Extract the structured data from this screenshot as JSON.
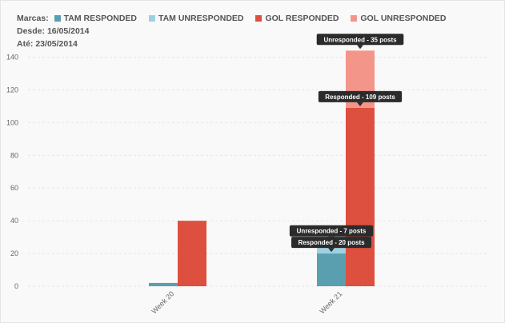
{
  "legend": {
    "prefix": "Marcas:",
    "items": [
      {
        "label": "TAM RESPONDED",
        "color": "#5a9fb0"
      },
      {
        "label": "TAM UNRESPONDED",
        "color": "#9ed0e0"
      },
      {
        "label": "GOL RESPONDED",
        "color": "#dd4f3e"
      },
      {
        "label": "GOL UNRESPONDED",
        "color": "#f4958a"
      }
    ],
    "from_label": "Desde:",
    "from_date": "16/05/2014",
    "to_label": "Até:",
    "to_date": "23/05/2014"
  },
  "chart_data": {
    "type": "bar",
    "stacked": true,
    "categories": [
      "Week 20",
      "Week 21"
    ],
    "stacks": [
      {
        "name": "TAM",
        "series": [
          {
            "name": "TAM RESPONDED",
            "color": "#5a9fb0",
            "values": [
              2,
              20
            ]
          },
          {
            "name": "TAM UNRESPONDED",
            "color": "#9ed0e0",
            "values": [
              0,
              7
            ]
          }
        ]
      },
      {
        "name": "GOL",
        "series": [
          {
            "name": "GOL RESPONDED",
            "color": "#dd4f3e",
            "values": [
              40,
              109
            ]
          },
          {
            "name": "GOL UNRESPONDED",
            "color": "#f4958a",
            "values": [
              0,
              35
            ]
          }
        ]
      }
    ],
    "yticks": [
      0,
      20,
      40,
      60,
      80,
      100,
      120,
      140
    ],
    "ylim": [
      0,
      150
    ],
    "grid": true,
    "legend_position": "top-left",
    "tooltips": [
      {
        "text": "Unresponded - 35 posts",
        "category": "Week 21",
        "stack": "GOL",
        "series": "GOL UNRESPONDED"
      },
      {
        "text": "Responded - 109 posts",
        "category": "Week 21",
        "stack": "GOL",
        "series": "GOL RESPONDED"
      },
      {
        "text": "Unresponded - 7 posts",
        "category": "Week 21",
        "stack": "TAM",
        "series": "TAM UNRESPONDED"
      },
      {
        "text": "Responded - 20 posts",
        "category": "Week 21",
        "stack": "TAM",
        "series": "TAM RESPONDED"
      }
    ]
  }
}
